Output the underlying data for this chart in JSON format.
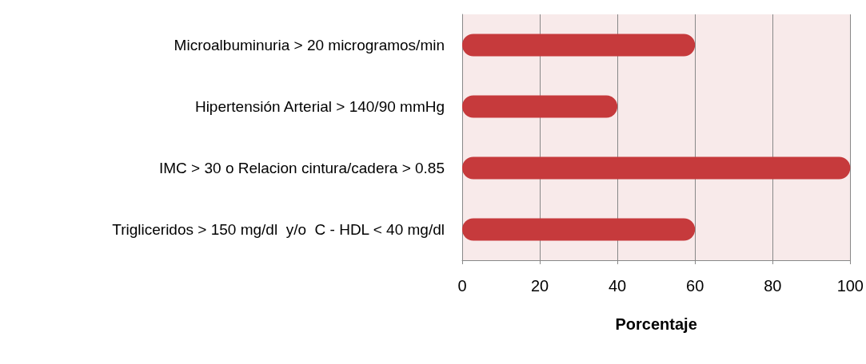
{
  "chart_data": {
    "type": "bar",
    "orientation": "horizontal",
    "xlabel": "Porcentaje",
    "categories": [
      "Microalbuminuria > 20 microgramos/min",
      "Hipertensión Arterial > 140/90 mmHg",
      "IMC > 30 o Relacion cintura/cadera > 0.85",
      "Trigliceridos > 150 mg/dl  y/o  C - HDL < 40 mg/dl"
    ],
    "values": [
      60,
      40,
      100,
      60
    ],
    "color": "#c63a3c",
    "xlim": [
      0,
      100
    ],
    "xticks": [
      0,
      20,
      40,
      60,
      80,
      100
    ],
    "grid": "x"
  }
}
